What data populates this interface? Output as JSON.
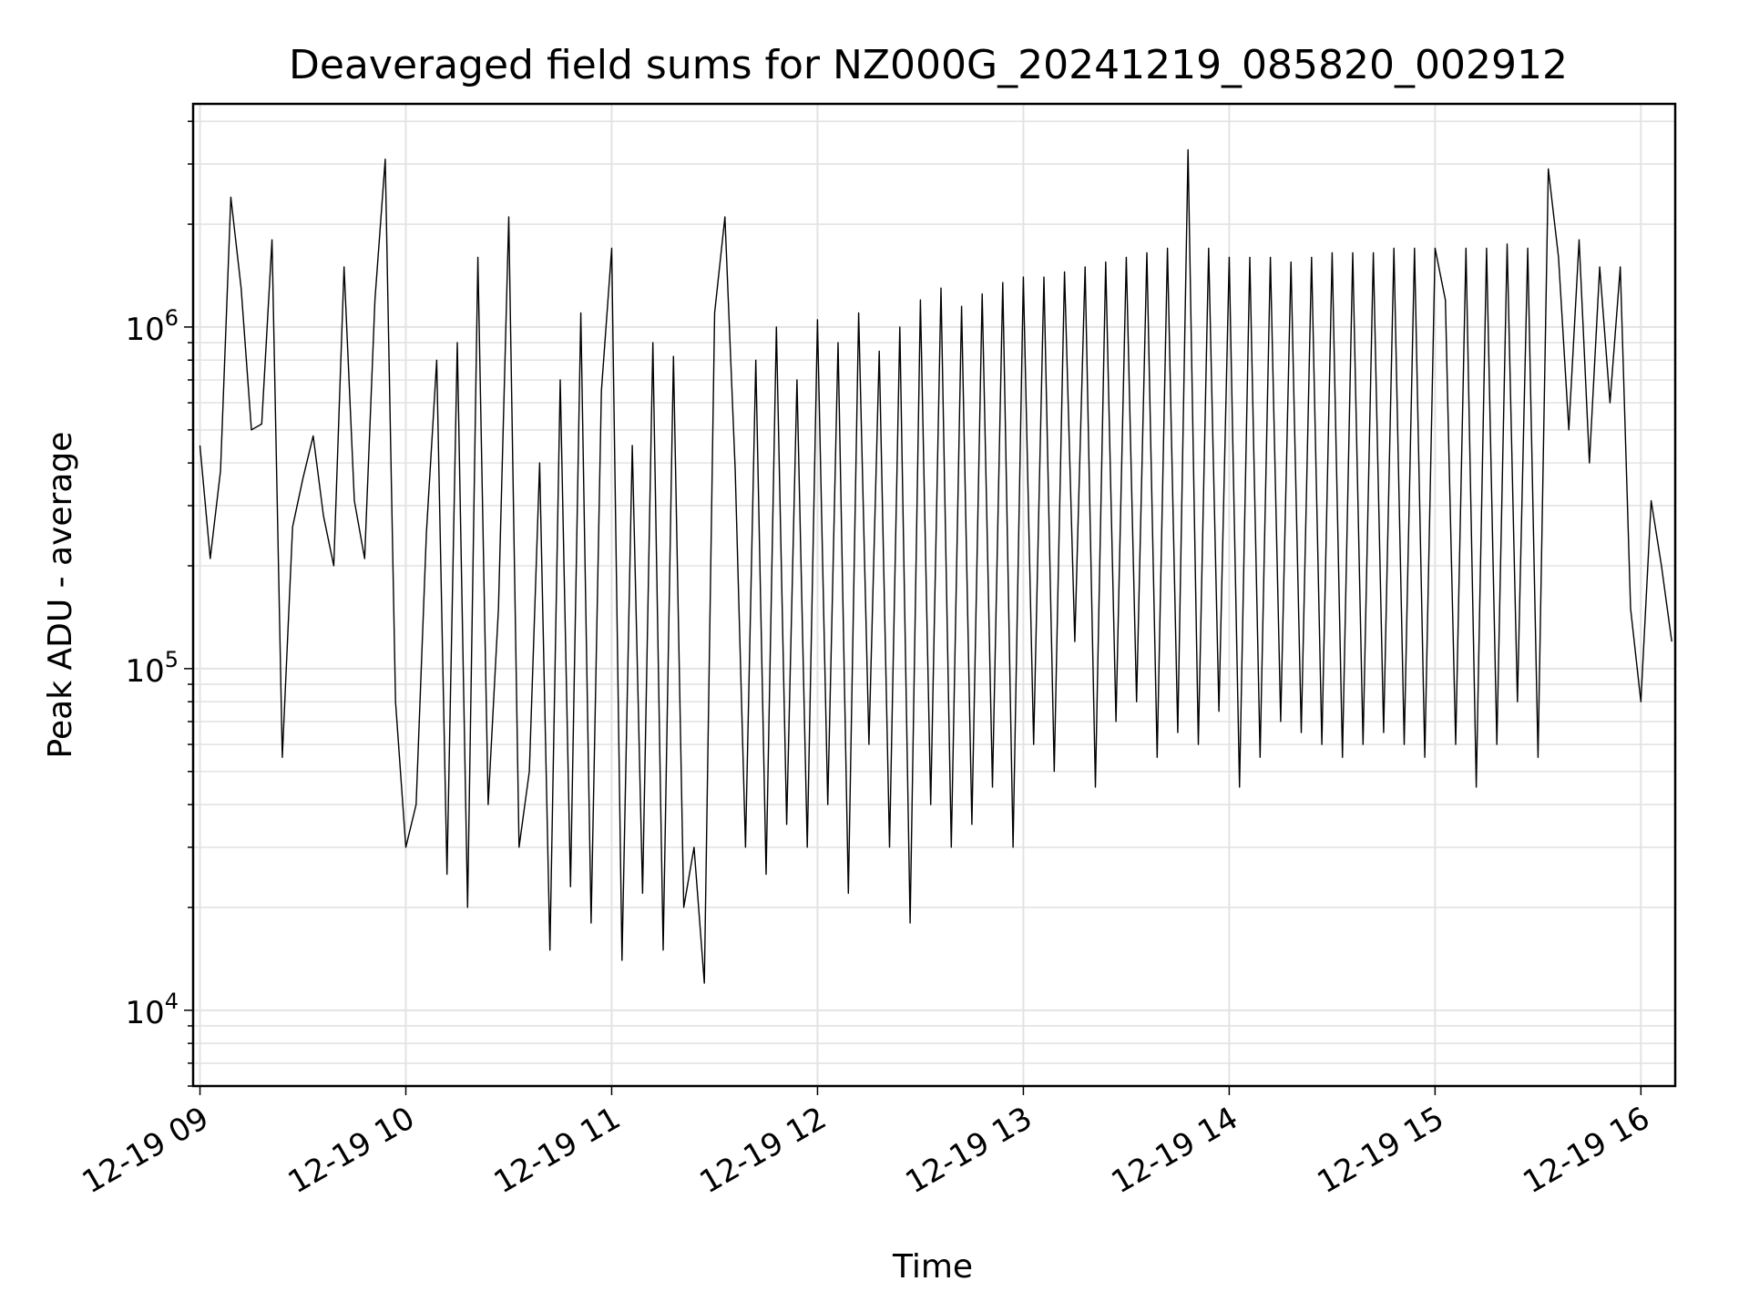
{
  "chart_data": {
    "type": "line",
    "title": "Deaveraged field sums for NZ000G_20241219_085820_002912",
    "xlabel": "Time",
    "ylabel": "Peak ADU - average",
    "yscale": "log",
    "ylim": [
      6000,
      4500000
    ],
    "xlim": [
      "2024-12-19 08:58",
      "2024-12-19 16:10"
    ],
    "grid": true,
    "series_color": "#000000",
    "x_ticks": [
      "12-19 09",
      "12-19 10",
      "12-19 11",
      "12-19 12",
      "12-19 13",
      "12-19 14",
      "12-19 15",
      "12-19 16"
    ],
    "y_ticks": [
      {
        "base": "10",
        "exp": "4"
      },
      {
        "base": "10",
        "exp": "5"
      },
      {
        "base": "10",
        "exp": "6"
      }
    ],
    "series": [
      {
        "x": [
          "09:00",
          "09:03",
          "09:06",
          "09:09",
          "09:12",
          "09:15",
          "09:18",
          "09:21",
          "09:24",
          "09:27",
          "09:30",
          "09:33",
          "09:36",
          "09:39",
          "09:42",
          "09:45",
          "09:48",
          "09:51",
          "09:54",
          "09:57",
          "10:00",
          "10:03",
          "10:06",
          "10:09",
          "10:12",
          "10:15",
          "10:18",
          "10:21",
          "10:24",
          "10:27",
          "10:30",
          "10:33",
          "10:36",
          "10:39",
          "10:42",
          "10:45",
          "10:48",
          "10:51",
          "10:54",
          "10:57",
          "11:00",
          "11:03",
          "11:06",
          "11:09",
          "11:12",
          "11:15",
          "11:18",
          "11:21",
          "11:24",
          "11:27",
          "11:30",
          "11:33",
          "11:36",
          "11:39",
          "11:42",
          "11:45",
          "11:48",
          "11:51",
          "11:54",
          "11:57",
          "12:00",
          "12:03",
          "12:06",
          "12:09",
          "12:12",
          "12:15",
          "12:18",
          "12:21",
          "12:24",
          "12:27",
          "12:30",
          "12:33",
          "12:36",
          "12:39",
          "12:42",
          "12:45",
          "12:48",
          "12:51",
          "12:54",
          "12:57",
          "13:00",
          "13:03",
          "13:06",
          "13:09",
          "13:12",
          "13:15",
          "13:18",
          "13:21",
          "13:24",
          "13:27",
          "13:30",
          "13:33",
          "13:36",
          "13:39",
          "13:42",
          "13:45",
          "13:48",
          "13:51",
          "13:54",
          "13:57",
          "14:00",
          "14:03",
          "14:06",
          "14:09",
          "14:12",
          "14:15",
          "14:18",
          "14:21",
          "14:24",
          "14:27",
          "14:30",
          "14:33",
          "14:36",
          "14:39",
          "14:42",
          "14:45",
          "14:48",
          "14:51",
          "14:54",
          "14:57",
          "15:00",
          "15:03",
          "15:06",
          "15:09",
          "15:12",
          "15:15",
          "15:18",
          "15:21",
          "15:24",
          "15:27",
          "15:30",
          "15:33",
          "15:36",
          "15:39",
          "15:42",
          "15:45",
          "15:48",
          "15:51",
          "15:54",
          "15:57",
          "16:00",
          "16:03",
          "16:06",
          "16:09"
        ],
        "y": [
          450000,
          210000,
          380000,
          2400000,
          1300000,
          500000,
          520000,
          1800000,
          55000,
          260000,
          360000,
          480000,
          280000,
          200000,
          1500000,
          310000,
          210000,
          1200000,
          3100000,
          80000,
          30000,
          40000,
          250000,
          800000,
          25000,
          900000,
          20000,
          1600000,
          40000,
          150000,
          2100000,
          30000,
          50000,
          400000,
          15000,
          700000,
          23000,
          1100000,
          18000,
          650000,
          1700000,
          14000,
          450000,
          22000,
          900000,
          15000,
          820000,
          20000,
          30000,
          12000,
          1100000,
          2100000,
          380000,
          30000,
          800000,
          25000,
          1000000,
          35000,
          700000,
          30000,
          1050000,
          40000,
          900000,
          22000,
          1100000,
          60000,
          850000,
          30000,
          1000000,
          18000,
          1200000,
          40000,
          1300000,
          30000,
          1150000,
          35000,
          1250000,
          45000,
          1350000,
          30000,
          1400000,
          60000,
          1400000,
          50000,
          1450000,
          120000,
          1500000,
          45000,
          1550000,
          70000,
          1600000,
          80000,
          1650000,
          55000,
          1700000,
          65000,
          3300000,
          60000,
          1700000,
          75000,
          1600000,
          45000,
          1600000,
          55000,
          1600000,
          70000,
          1550000,
          65000,
          1600000,
          60000,
          1650000,
          55000,
          1650000,
          60000,
          1650000,
          65000,
          1700000,
          60000,
          1700000,
          55000,
          1700000,
          1200000,
          60000,
          1700000,
          45000,
          1700000,
          60000,
          1750000,
          80000,
          1700000,
          55000,
          2900000,
          1600000,
          500000,
          1800000,
          400000,
          1500000,
          600000,
          1500000,
          150000,
          80000,
          310000,
          200000,
          120000
        ]
      }
    ]
  }
}
